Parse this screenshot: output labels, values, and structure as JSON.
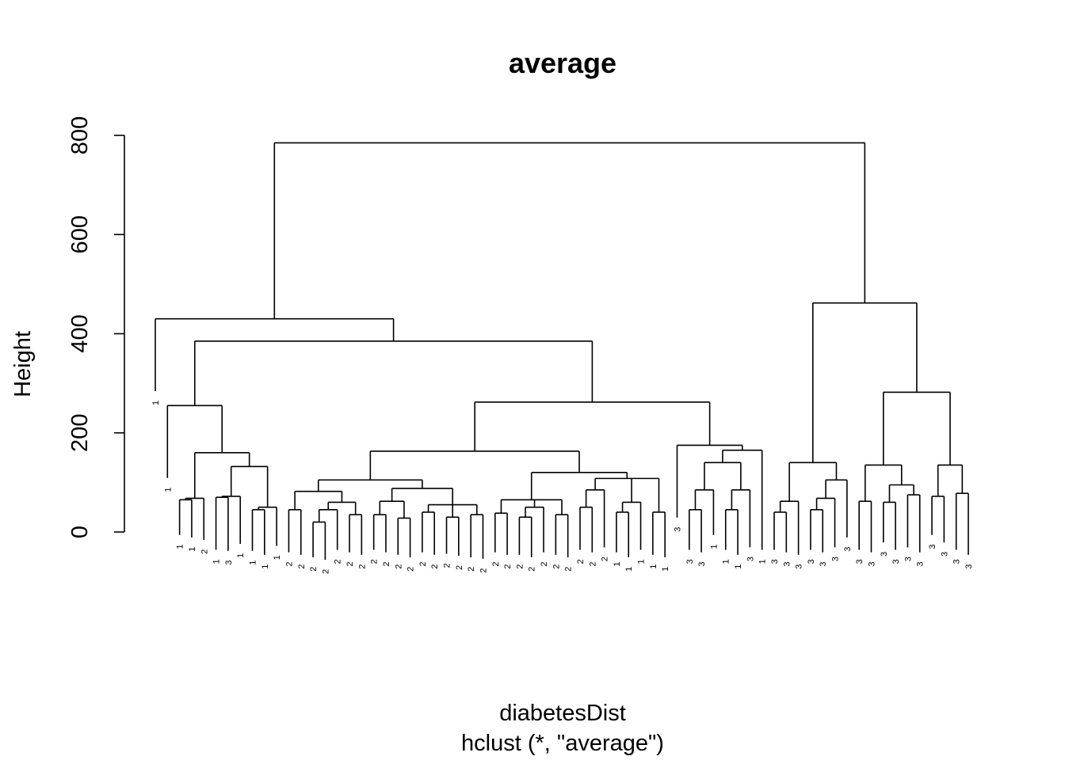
{
  "chart_data": {
    "type": "dendrogram",
    "title": "average",
    "xlabel": "diabetesDist",
    "sub": "hclust (*, \"average\")",
    "ylabel": "Height",
    "ylim": [
      0,
      800
    ],
    "yticks": [
      0,
      200,
      400,
      600,
      800
    ],
    "tree": [
      785,
      [
        430,
        [
          350,
          "1"
        ],
        [
          385,
          [
            255,
            [
              175,
              "1"
            ],
            [
              160,
              [
                68,
                [
                  65,
                  [
                    60,
                    "1"
                  ],
                  [
                    55,
                    "1"
                  ]
                ],
                [
                  50,
                  "2"
                ]
              ],
              [
                132,
                [
                  72,
                  [
                    70,
                    [
                      30,
                      "1"
                    ],
                    [
                      28,
                      "3"
                    ]
                  ],
                  [
                    42,
                    "1"
                  ]
                ],
                [
                  50,
                  [
                    45,
                    [
                      28,
                      "1"
                    ],
                    [
                      20,
                      "1"
                    ]
                  ],
                  [
                    38,
                    "1"
                  ]
                ]
              ]
            ]
          ],
          [
            262,
            [
              163,
              [
                105,
                [
                  82,
                  [
                    45,
                    [
                      25,
                      "2"
                    ],
                    [
                      20,
                      "2"
                    ]
                  ],
                  [
                    60,
                    [
                      45,
                      [
                        20,
                        [
                          15,
                          "2"
                        ],
                        [
                          10,
                          "2"
                        ]
                      ],
                      [
                        30,
                        "2"
                      ]
                    ],
                    [
                      35,
                      [
                        25,
                        "2"
                      ],
                      [
                        20,
                        "2"
                      ]
                    ]
                  ]
                ],
                [
                  88,
                  [
                    62,
                    [
                      35,
                      [
                        30,
                        "2"
                      ],
                      [
                        25,
                        "2"
                      ]
                    ],
                    [
                      28,
                      [
                        20,
                        "2"
                      ],
                      [
                        15,
                        "2"
                      ]
                    ]
                  ],
                  [
                    55,
                    [
                      40,
                      [
                        25,
                        "2"
                      ],
                      [
                        20,
                        "2"
                      ]
                    ],
                    [
                      30,
                      [
                        22,
                        "2"
                      ],
                      [
                        18,
                        "2"
                      ]
                    ],
                    [
                      35,
                      [
                        15,
                        "2"
                      ],
                      [
                        12,
                        "2"
                      ]
                    ]
                  ]
                ]
              ],
              [
                120,
                [
                  65,
                  [
                    38,
                    [
                      25,
                      "2"
                    ],
                    [
                      20,
                      "2"
                    ]
                  ],
                  [
                    50,
                    [
                      30,
                      [
                        20,
                        "2"
                      ],
                      [
                        15,
                        "2"
                      ]
                    ],
                    [
                      25,
                      "2"
                    ]
                  ],
                  [
                    35,
                    [
                      20,
                      "2"
                    ],
                    [
                      15,
                      "2"
                    ]
                  ]
                ],
                [
                  108,
                  [
                    85,
                    [
                      50,
                      [
                        30,
                        "2"
                      ],
                      [
                        25,
                        "2"
                      ]
                    ],
                    [
                      35,
                      "2"
                    ]
                  ],
                  [
                    60,
                    [
                      40,
                      [
                        25,
                        "1"
                      ],
                      [
                        15,
                        "1"
                      ]
                    ],
                    [
                      30,
                      "1"
                    ]
                  ],
                  [
                    40,
                    [
                      20,
                      "1"
                    ],
                    [
                      15,
                      "1"
                    ]
                  ]
                ]
              ]
            ],
            [
              175,
              [
                95,
                "3"
              ],
              [
                165,
                [
                  140,
                  [
                    85,
                    [
                      45,
                      [
                        30,
                        "3"
                      ],
                      [
                        25,
                        "3"
                      ]
                    ],
                    [
                      60,
                      "1"
                    ]
                  ],
                  [
                    85,
                    [
                      45,
                      [
                        30,
                        "1"
                      ],
                      [
                        20,
                        "1"
                      ]
                    ],
                    [
                      35,
                      "3"
                    ]
                  ]
                ],
                [
                  30,
                  "1"
                ]
              ]
            ]
          ]
        ]
      ],
      [
        462,
        [
          140,
          [
            62,
            [
              40,
              [
                30,
                "3"
              ],
              [
                25,
                "3"
              ]
            ],
            [
              20,
              "3"
            ]
          ],
          [
            105,
            [
              68,
              [
                45,
                [
                  30,
                  "3"
                ],
                [
                  25,
                  "3"
                ]
              ],
              [
                35,
                "3"
              ]
            ],
            [
              55,
              "3"
            ]
          ]
        ],
        [
          282,
          [
            135,
            [
              62,
              [
                30,
                "3"
              ],
              [
                25,
                "3"
              ]
            ],
            [
              95,
              [
                60,
                [
                  45,
                  "3"
                ],
                [
                  30,
                  "3"
                ]
              ],
              [
                75,
                [
                  35,
                  "3"
                ],
                [
                  25,
                  "3"
                ]
              ]
            ]
          ],
          [
            135,
            [
              72,
              [
                60,
                "3"
              ],
              [
                45,
                "3"
              ]
            ],
            [
              78,
              [
                30,
                "3"
              ],
              [
                20,
                "3"
              ]
            ]
          ]
        ]
      ]
    ]
  }
}
